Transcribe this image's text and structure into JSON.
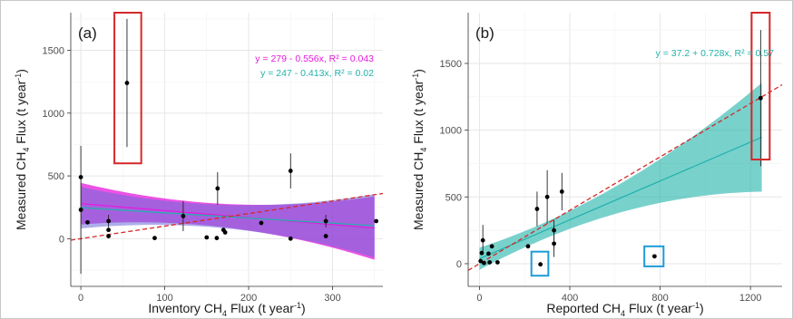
{
  "chart_data": [
    {
      "type": "scatter",
      "panel_label": "(a)",
      "xlabel": {
        "pre": "Inventory CH",
        "sub": "4",
        "post": " Flux (t year",
        "sup": "-1",
        "end": ")"
      },
      "ylabel": {
        "pre": "Measured CH",
        "sub": "4",
        "post": " Flux (t year",
        "sup": "-1",
        "end": ")"
      },
      "xlim": [
        -12,
        360
      ],
      "ylim": [
        -380,
        1800
      ],
      "xticks": [
        0,
        100,
        200,
        300
      ],
      "yticks": [
        0,
        500,
        1000,
        1500
      ],
      "grid": true,
      "points": [
        {
          "x": 0,
          "y": 490,
          "lo": -280,
          "hi": 740
        },
        {
          "x": 0,
          "y": 230,
          "lo": null,
          "hi": null
        },
        {
          "x": 8,
          "y": 130,
          "lo": null,
          "hi": null
        },
        {
          "x": 33,
          "y": 140,
          "lo": 90,
          "hi": 190
        },
        {
          "x": 33,
          "y": 70,
          "lo": null,
          "hi": null
        },
        {
          "x": 33,
          "y": 20,
          "lo": null,
          "hi": null
        },
        {
          "x": 55,
          "y": 1240,
          "lo": 730,
          "hi": 1750
        },
        {
          "x": 88,
          "y": 5,
          "lo": null,
          "hi": null
        },
        {
          "x": 122,
          "y": 180,
          "lo": 60,
          "hi": 300
        },
        {
          "x": 150,
          "y": 10,
          "lo": null,
          "hi": null
        },
        {
          "x": 162,
          "y": 5,
          "lo": null,
          "hi": null
        },
        {
          "x": 163,
          "y": 400,
          "lo": 270,
          "hi": 530
        },
        {
          "x": 170,
          "y": 70,
          "lo": null,
          "hi": null
        },
        {
          "x": 172,
          "y": 50,
          "lo": null,
          "hi": null
        },
        {
          "x": 215,
          "y": 125,
          "lo": null,
          "hi": null
        },
        {
          "x": 250,
          "y": 540,
          "lo": 400,
          "hi": 680
        },
        {
          "x": 250,
          "y": 0,
          "lo": null,
          "hi": null
        },
        {
          "x": 292,
          "y": 140,
          "lo": 90,
          "hi": 190
        },
        {
          "x": 292,
          "y": 20,
          "lo": null,
          "hi": null
        },
        {
          "x": 352,
          "y": 140,
          "lo": null,
          "hi": null
        }
      ],
      "fits": [
        {
          "label": "y = 279 - 0.556x, R² = 0.043",
          "color": "#e41adc",
          "intercept": 279,
          "slope": -0.556,
          "ci_band_color": "#e41adc"
        },
        {
          "label": "y = 247 - 0.413x, R² = 0.02",
          "color": "#20b2aa",
          "intercept": 247,
          "slope": -0.413,
          "ci_band_color": "#6c6cd8"
        }
      ],
      "one_to_one_line": {
        "color": "#d62728",
        "style": "dashed"
      },
      "highlight_boxes": [
        {
          "color": "#d62728",
          "x_range": [
            40,
            72
          ],
          "y_range": [
            600,
            1850
          ]
        }
      ]
    },
    {
      "type": "scatter",
      "panel_label": "(b)",
      "xlabel": {
        "pre": "Reported CH",
        "sub": "4",
        "post": " Flux (t year",
        "sup": "-1",
        "end": ")"
      },
      "ylabel": {
        "pre": "Measured CH",
        "sub": "4",
        "post": " Flux (t year",
        "sup": "-1",
        "end": ")"
      },
      "xlim": [
        -50,
        1340
      ],
      "ylim": [
        -170,
        1880
      ],
      "xticks": [
        0,
        400,
        800,
        1200
      ],
      "yticks": [
        0,
        500,
        1000,
        1500
      ],
      "grid": true,
      "points": [
        {
          "x": 5,
          "y": 20,
          "lo": null,
          "hi": null
        },
        {
          "x": 10,
          "y": 80,
          "lo": null,
          "hi": null
        },
        {
          "x": 15,
          "y": 175,
          "lo": 80,
          "hi": 290
        },
        {
          "x": 20,
          "y": 5,
          "lo": null,
          "hi": null
        },
        {
          "x": 40,
          "y": 75,
          "lo": null,
          "hi": null
        },
        {
          "x": 45,
          "y": 10,
          "lo": null,
          "hi": null
        },
        {
          "x": 55,
          "y": 130,
          "lo": null,
          "hi": null
        },
        {
          "x": 80,
          "y": 10,
          "lo": null,
          "hi": null
        },
        {
          "x": 215,
          "y": 130,
          "lo": null,
          "hi": null
        },
        {
          "x": 255,
          "y": 410,
          "lo": 280,
          "hi": 540
        },
        {
          "x": 270,
          "y": -5,
          "lo": null,
          "hi": null
        },
        {
          "x": 300,
          "y": 500,
          "lo": 300,
          "hi": 700
        },
        {
          "x": 330,
          "y": 250,
          "lo": 110,
          "hi": 330
        },
        {
          "x": 330,
          "y": 150,
          "lo": 50,
          "hi": 260
        },
        {
          "x": 365,
          "y": 540,
          "lo": 400,
          "hi": 680
        },
        {
          "x": 775,
          "y": 55,
          "lo": null,
          "hi": null
        },
        {
          "x": 1245,
          "y": 1240,
          "lo": 730,
          "hi": 1750
        }
      ],
      "fits": [
        {
          "label": "y = 37.2 + 0.728x, R² = 0.57",
          "color": "#20b2aa",
          "intercept": 37.2,
          "slope": 0.728,
          "ci_band_color": "#20b2aa"
        }
      ],
      "one_to_one_line": {
        "color": "#d62728",
        "style": "dashed"
      },
      "highlight_boxes": [
        {
          "color": "#d62728",
          "x_range": [
            1205,
            1285
          ],
          "y_range": [
            780,
            1880
          ]
        },
        {
          "color": "#1e9bd7",
          "x_range": [
            230,
            305
          ],
          "y_range": [
            -90,
            90
          ]
        },
        {
          "color": "#1e9bd7",
          "x_range": [
            730,
            815
          ],
          "y_range": [
            -20,
            130
          ]
        }
      ]
    }
  ]
}
